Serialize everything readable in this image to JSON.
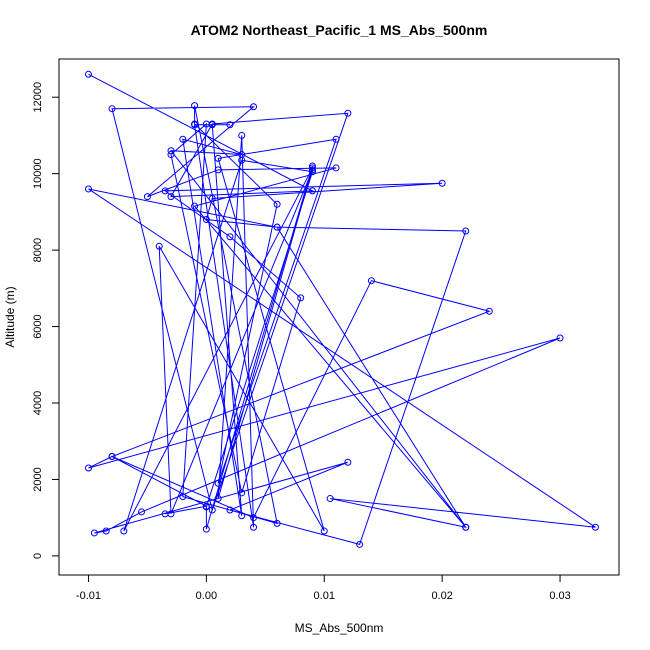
{
  "chart_data": {
    "type": "line",
    "title": "ATOM2 Northeast_Pacific_1 MS_Abs_500nm",
    "xlabel": "MS_Abs_500nm",
    "ylabel": "Altitude (m)",
    "xlim": [
      -0.0125,
      0.035
    ],
    "ylim": [
      -500,
      13000
    ],
    "xticks": [
      -0.01,
      0.0,
      0.01,
      0.02,
      0.03
    ],
    "xtick_labels": [
      "-0.01",
      "0.00",
      "0.01",
      "0.02",
      "0.03"
    ],
    "yticks": [
      0,
      2000,
      4000,
      6000,
      8000,
      10000,
      12000
    ],
    "ytick_labels": [
      "0",
      "2000",
      "4000",
      "6000",
      "8000",
      "10000",
      "12000"
    ],
    "grid": false,
    "legend": "none",
    "series_color": "#0000ff",
    "marker": "open-circle",
    "points": [
      [
        -0.01,
        12600
      ],
      [
        0.009,
        9550
      ],
      [
        -0.003,
        9400
      ],
      [
        0.0005,
        11300
      ],
      [
        0.012,
        11580
      ],
      [
        0.0005,
        1200
      ],
      [
        -0.008,
        11700
      ],
      [
        0.004,
        11750
      ],
      [
        -0.005,
        9400
      ],
      [
        0.001,
        10100
      ],
      [
        0.011,
        10150
      ],
      [
        -0.001,
        9150
      ],
      [
        0.022,
        750
      ],
      [
        -0.003,
        10600
      ],
      [
        0.003,
        10500
      ],
      [
        -0.002,
        10900
      ],
      [
        0.003,
        1050
      ],
      [
        0.0005,
        11280
      ],
      [
        0.002,
        11280
      ],
      [
        -0.001,
        11280
      ],
      [
        0.004,
        750
      ],
      [
        0.003,
        11000
      ],
      [
        0.001,
        1500
      ],
      [
        0.009,
        10150
      ],
      [
        -0.007,
        650
      ],
      [
        0.003,
        10350
      ],
      [
        0.009,
        10050
      ],
      [
        0.0,
        1280
      ],
      [
        0.0,
        700
      ],
      [
        0.009,
        10200
      ],
      [
        0.009,
        10100
      ],
      [
        -0.003,
        1100
      ],
      [
        -0.004,
        8100
      ],
      [
        0.01,
        650
      ],
      [
        0.001,
        10400
      ],
      [
        0.011,
        10900
      ],
      [
        0.001,
        1900
      ],
      [
        0.006,
        9200
      ],
      [
        -0.001,
        11300
      ],
      [
        -0.001,
        11780
      ],
      [
        0.006,
        850
      ],
      [
        -0.002,
        1550
      ],
      [
        0.0,
        11300
      ],
      [
        -0.003,
        10500
      ],
      [
        0.003,
        1650
      ],
      [
        0.008,
        6750
      ],
      [
        0.002,
        8350
      ],
      [
        -0.0035,
        9550
      ],
      [
        0.02,
        9750
      ],
      [
        0.0005,
        9350
      ],
      [
        0.0,
        8800
      ],
      [
        0.006,
        8600
      ],
      [
        0.022,
        750
      ],
      [
        0.0105,
        1500
      ],
      [
        0.033,
        750
      ],
      [
        -0.01,
        9600
      ],
      [
        0.006,
        8600
      ],
      [
        0.022,
        8500
      ],
      [
        0.013,
        300
      ],
      [
        0.002,
        1200
      ],
      [
        0.012,
        2450
      ],
      [
        -0.0095,
        600
      ],
      [
        -0.0085,
        650
      ],
      [
        -0.0055,
        1150
      ],
      [
        0.03,
        5700
      ],
      [
        -0.01,
        2300
      ],
      [
        -0.008,
        2600
      ],
      [
        0.024,
        6400
      ],
      [
        0.014,
        7200
      ],
      [
        0.004,
        1000
      ],
      [
        -0.008,
        2600
      ],
      [
        0.0,
        1300
      ],
      [
        -0.0035,
        1100
      ]
    ]
  }
}
